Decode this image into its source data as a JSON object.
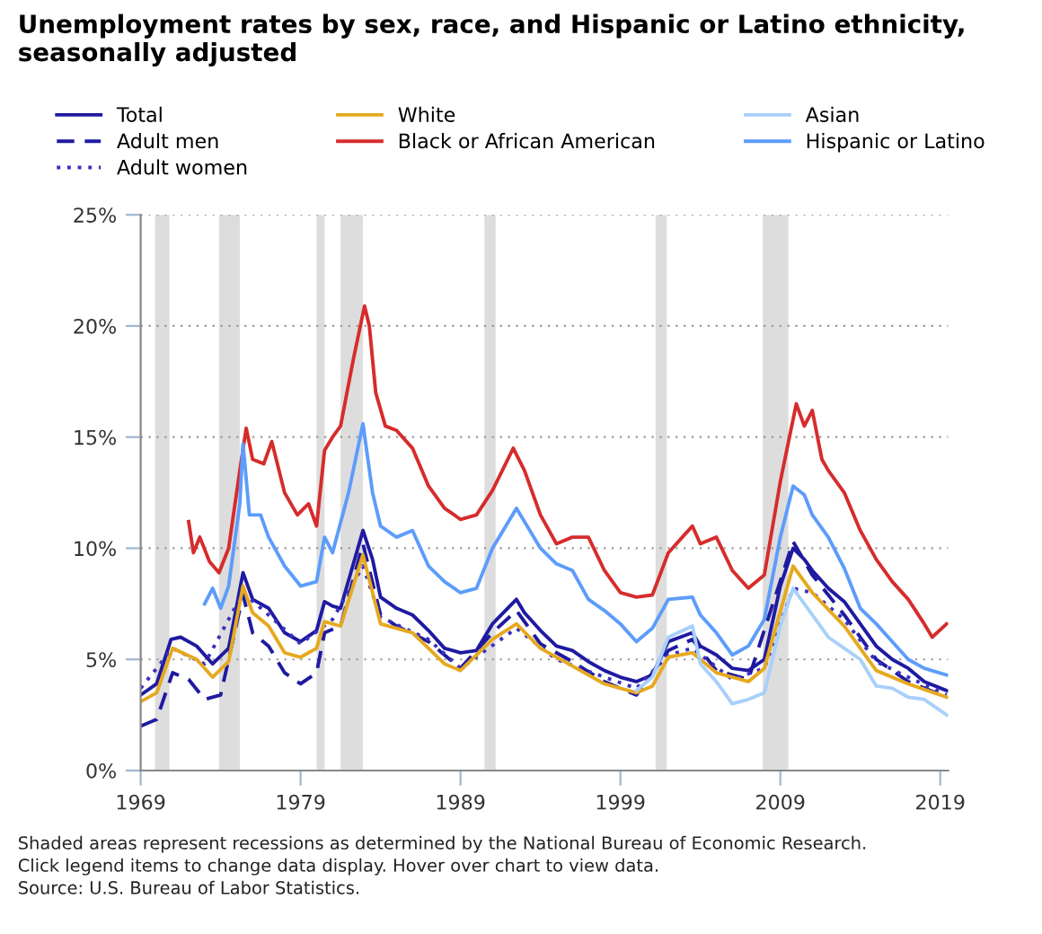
{
  "chart_data": {
    "type": "line",
    "title": "Unemployment rates by sex, race, and Hispanic or Latino ethnicity,\nseasonally adjusted",
    "xlim": [
      1969,
      2019.5
    ],
    "xticks": [
      1969,
      1979,
      1989,
      1999,
      2009,
      2019
    ],
    "ylim": [
      0,
      25
    ],
    "yticks": [
      {
        "value": 0,
        "label": "0%"
      },
      {
        "value": 5,
        "label": "5%"
      },
      {
        "value": 10,
        "label": "10%"
      },
      {
        "value": 15,
        "label": "15%"
      },
      {
        "value": 20,
        "label": "20%"
      },
      {
        "value": 25,
        "label": "25%"
      }
    ],
    "grid": "y",
    "legend": "top",
    "bands": [
      {
        "axis": "x",
        "from": 1969.9,
        "to": 1970.8,
        "color": "#dddddd"
      },
      {
        "axis": "x",
        "from": 1973.9,
        "to": 1975.2,
        "color": "#dddddd"
      },
      {
        "axis": "x",
        "from": 1980.0,
        "to": 1980.5,
        "color": "#dddddd"
      },
      {
        "axis": "x",
        "from": 1981.5,
        "to": 1982.9,
        "color": "#dddddd"
      },
      {
        "axis": "x",
        "from": 1990.5,
        "to": 1991.2,
        "color": "#dddddd"
      },
      {
        "axis": "x",
        "from": 2001.2,
        "to": 2001.9,
        "color": "#dddddd"
      },
      {
        "axis": "x",
        "from": 2007.9,
        "to": 2009.5,
        "color": "#dddddd"
      }
    ],
    "series": [
      {
        "name": "Total",
        "color": "#1f1aa0",
        "line_style": "solid",
        "x": [
          1969,
          1970,
          1970.9,
          1971.5,
          1972.5,
          1973.5,
          1974.5,
          1975.4,
          1976,
          1977,
          1978,
          1979,
          1980,
          1980.5,
          1981,
          1981.5,
          1982.9,
          1983.5,
          1984,
          1985,
          1986,
          1987,
          1988,
          1989,
          1990,
          1991,
          1992.5,
          1993,
          1994,
          1995,
          1996,
          1997,
          1998,
          1999,
          2000,
          2001,
          2002,
          2003.5,
          2004,
          2005,
          2006,
          2007,
          2008,
          2009,
          2009.8,
          2010.5,
          2011,
          2012,
          2013,
          2014,
          2015,
          2016,
          2017,
          2018,
          2019.4
        ],
        "values": [
          3.4,
          3.9,
          5.9,
          6.0,
          5.6,
          4.8,
          5.5,
          8.9,
          7.7,
          7.3,
          6.2,
          5.8,
          6.3,
          7.6,
          7.4,
          7.3,
          10.8,
          9.5,
          7.8,
          7.3,
          7.0,
          6.3,
          5.5,
          5.3,
          5.4,
          6.6,
          7.7,
          7.1,
          6.3,
          5.6,
          5.4,
          4.9,
          4.5,
          4.2,
          4.0,
          4.3,
          5.8,
          6.2,
          5.6,
          5.2,
          4.6,
          4.5,
          5.0,
          8.3,
          10.0,
          9.5,
          9.0,
          8.2,
          7.6,
          6.6,
          5.6,
          5.0,
          4.6,
          4.0,
          3.6
        ]
      },
      {
        "name": "Adult men",
        "color": "#1f1aa0",
        "line_style": "dashed",
        "x": [
          1969,
          1970,
          1971,
          1972,
          1973,
          1974,
          1975.4,
          1976,
          1977,
          1978,
          1979,
          1980,
          1980.5,
          1981.5,
          1982.9,
          1984,
          1985,
          1987,
          1989,
          1991,
          1992.5,
          1994,
          1996,
          1998,
          2000,
          2002,
          2003.5,
          2005,
          2007,
          2009.8,
          2011,
          2013,
          2015,
          2017,
          2019.4
        ],
        "values": [
          2.0,
          2.3,
          4.4,
          4.1,
          3.2,
          3.4,
          7.9,
          6.2,
          5.6,
          4.4,
          3.9,
          4.4,
          6.2,
          6.5,
          10.2,
          7.0,
          6.5,
          5.8,
          4.6,
          6.2,
          7.2,
          5.7,
          4.9,
          4.0,
          3.4,
          5.4,
          5.9,
          4.5,
          4.1,
          10.3,
          8.8,
          7.0,
          5.0,
          4.0,
          3.3
        ]
      },
      {
        "name": "Adult women",
        "color": "#3a2fc0",
        "line_style": "dotted",
        "x": [
          1969,
          1971,
          1973,
          1975.4,
          1977,
          1979,
          1981,
          1982.9,
          1984,
          1987,
          1989,
          1992.5,
          1995,
          1998,
          2000,
          2002,
          2003.5,
          2006,
          2008,
          2009.8,
          2011,
          2013,
          2015,
          2017,
          2019.4
        ],
        "values": [
          3.7,
          5.5,
          4.8,
          8.0,
          7.0,
          5.7,
          6.8,
          9.2,
          6.9,
          5.9,
          4.6,
          6.4,
          5.0,
          4.2,
          3.7,
          5.2,
          5.5,
          4.1,
          4.6,
          8.2,
          8.0,
          6.8,
          4.9,
          4.2,
          3.4
        ]
      },
      {
        "name": "White",
        "color": "#e6a91f",
        "line_style": "solid",
        "x": [
          1969,
          1970,
          1971,
          1972.5,
          1973.5,
          1974.5,
          1975.4,
          1976,
          1977,
          1978,
          1979,
          1980,
          1980.5,
          1981.5,
          1982.9,
          1984,
          1986,
          1988,
          1989,
          1991,
          1992.5,
          1994,
          1996,
          1998,
          2000,
          2001,
          2002,
          2003.5,
          2005,
          2007,
          2008,
          2009.8,
          2011,
          2013,
          2015,
          2017,
          2019.4
        ],
        "values": [
          3.1,
          3.5,
          5.5,
          5.0,
          4.2,
          4.9,
          8.3,
          7.1,
          6.5,
          5.3,
          5.1,
          5.5,
          6.7,
          6.5,
          9.7,
          6.6,
          6.2,
          4.8,
          4.5,
          5.9,
          6.6,
          5.5,
          4.7,
          3.9,
          3.5,
          3.8,
          5.1,
          5.3,
          4.4,
          4.0,
          4.6,
          9.2,
          8.0,
          6.5,
          4.5,
          3.9,
          3.3
        ]
      },
      {
        "name": "Black or African American",
        "color": "#d62c2c",
        "line_style": "solid",
        "x": [
          1972,
          1972.3,
          1972.7,
          1973.3,
          1973.9,
          1974.5,
          1975.2,
          1975.6,
          1976,
          1976.7,
          1977.2,
          1978,
          1978.8,
          1979.5,
          1980,
          1980.5,
          1981,
          1981.5,
          1982.3,
          1983,
          1983.3,
          1983.7,
          1984.3,
          1985,
          1986,
          1987,
          1988,
          1989,
          1990,
          1991,
          1992.3,
          1993,
          1994,
          1995,
          1996,
          1997,
          1998,
          1999,
          2000,
          2001,
          2002,
          2003.5,
          2004,
          2005,
          2006,
          2007,
          2008,
          2009,
          2010,
          2010.5,
          2011,
          2011.6,
          2012,
          2013,
          2014,
          2015,
          2016,
          2017,
          2018,
          2018.5,
          2019.4
        ],
        "values": [
          11.2,
          9.8,
          10.5,
          9.4,
          8.9,
          10.0,
          13.5,
          15.4,
          14.0,
          13.8,
          14.8,
          12.5,
          11.5,
          12.0,
          11.0,
          14.4,
          15.0,
          15.5,
          18.5,
          20.9,
          20.0,
          17.0,
          15.5,
          15.3,
          14.5,
          12.8,
          11.8,
          11.3,
          11.5,
          12.6,
          14.5,
          13.5,
          11.5,
          10.2,
          10.5,
          10.5,
          9.0,
          8.0,
          7.8,
          7.9,
          9.8,
          11.0,
          10.2,
          10.5,
          9.0,
          8.2,
          8.8,
          13.0,
          16.5,
          15.5,
          16.2,
          14.0,
          13.5,
          12.5,
          10.8,
          9.5,
          8.5,
          7.7,
          6.6,
          6.0,
          6.6
        ]
      },
      {
        "name": "Asian",
        "color": "#a9d0fa",
        "line_style": "solid",
        "x": [
          2000,
          2001,
          2002,
          2003.5,
          2004,
          2005,
          2006,
          2007,
          2008,
          2009,
          2009.8,
          2010.5,
          2011,
          2012,
          2013,
          2014,
          2015,
          2016,
          2017,
          2018,
          2019.4
        ],
        "values": [
          3.6,
          4.2,
          6.0,
          6.5,
          4.8,
          4.0,
          3.0,
          3.2,
          3.5,
          6.5,
          8.2,
          7.5,
          7.0,
          6.0,
          5.5,
          5.0,
          3.8,
          3.7,
          3.3,
          3.2,
          2.5
        ]
      },
      {
        "name": "Hispanic or Latino",
        "color": "#5d9cfb",
        "line_style": "solid",
        "x": [
          1973,
          1973.5,
          1974,
          1974.5,
          1975.2,
          1975.4,
          1975.8,
          1976.5,
          1977,
          1978,
          1979,
          1980,
          1980.5,
          1981,
          1982,
          1982.9,
          1983.5,
          1984,
          1985,
          1986,
          1987,
          1988,
          1989,
          1990,
          1991,
          1992.5,
          1993,
          1994,
          1995,
          1996,
          1997,
          1998,
          1999,
          2000,
          2001,
          2002,
          2003.5,
          2004,
          2005,
          2006,
          2007,
          2008,
          2009,
          2009.8,
          2010.5,
          2011,
          2012,
          2013,
          2014,
          2015,
          2016,
          2017,
          2018,
          2019.4
        ],
        "values": [
          7.5,
          8.2,
          7.3,
          8.3,
          12.0,
          14.7,
          11.5,
          11.5,
          10.5,
          9.2,
          8.3,
          8.5,
          10.5,
          9.8,
          12.5,
          15.6,
          12.5,
          11.0,
          10.5,
          10.8,
          9.2,
          8.5,
          8.0,
          8.2,
          10.0,
          11.8,
          11.2,
          10.0,
          9.3,
          9.0,
          7.7,
          7.2,
          6.6,
          5.8,
          6.4,
          7.7,
          7.8,
          7.0,
          6.2,
          5.2,
          5.6,
          6.8,
          10.5,
          12.8,
          12.4,
          11.5,
          10.5,
          9.1,
          7.3,
          6.6,
          5.8,
          5.0,
          4.6,
          4.3
        ]
      }
    ],
    "annotations": [
      "Shaded areas represent recessions as determined by the National Bureau of Economic Research.",
      "Click legend items to change data display. Hover over chart to view data.",
      "Source: U.S. Bureau of Labor Statistics."
    ]
  }
}
